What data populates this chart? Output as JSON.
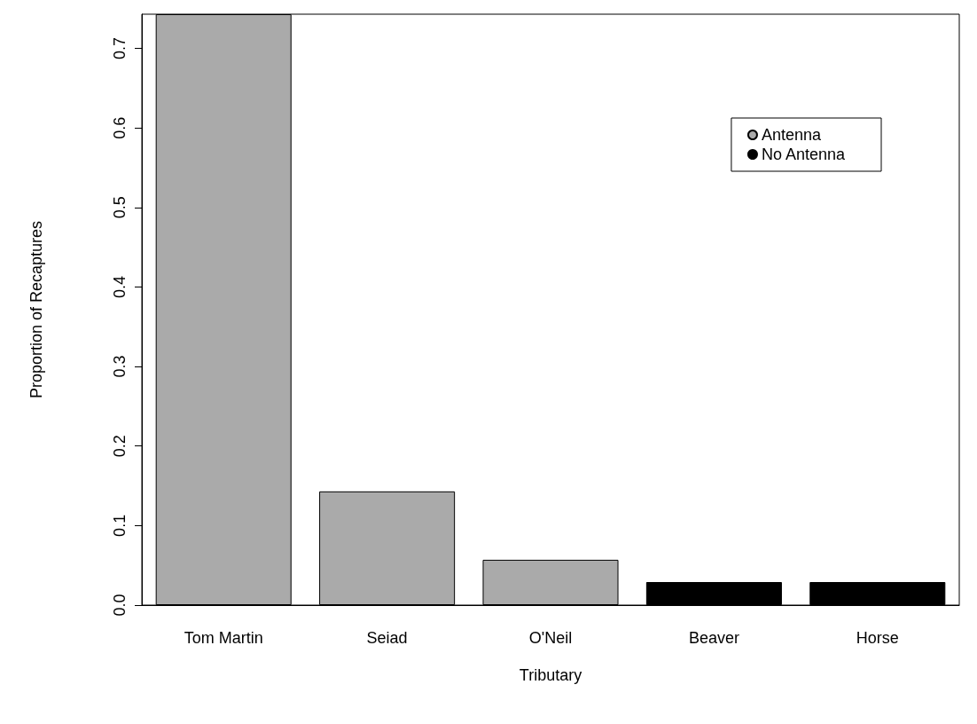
{
  "chart_data": {
    "type": "bar",
    "xlabel": "Tributary",
    "ylabel": "Proportion of Recaptures",
    "categories": [
      "Tom Martin",
      "Seiad",
      "O'Neil",
      "Beaver",
      "Horse"
    ],
    "series": [
      {
        "name": "Antenna",
        "color": "#aaaaaa",
        "values": [
          0.743,
          0.143,
          0.057,
          null,
          null
        ]
      },
      {
        "name": "No Antenna",
        "color": "#000000",
        "values": [
          null,
          null,
          null,
          0.029,
          0.029
        ]
      }
    ],
    "ylim": [
      0,
      0.743
    ],
    "yticks": [
      {
        "value": 0,
        "label": "0.0"
      },
      0.1,
      0.2,
      0.3,
      0.4,
      0.5,
      0.6,
      0.7
    ],
    "grid": false,
    "legend": "top right"
  }
}
